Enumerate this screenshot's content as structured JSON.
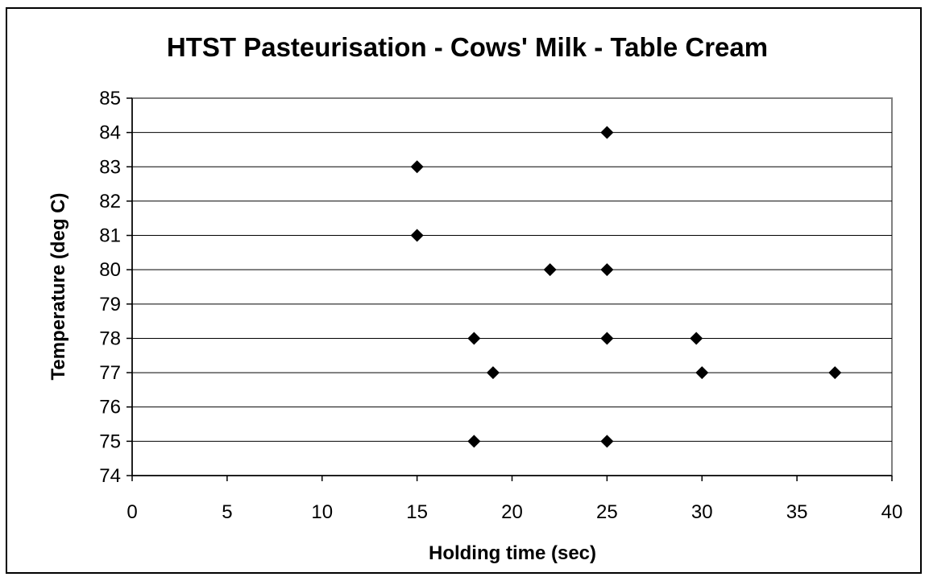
{
  "chart_data": {
    "type": "scatter",
    "title": "HTST Pasteurisation - Cows' Milk - Table Cream",
    "xlabel": "Holding time (sec)",
    "ylabel": "Temperature (deg C)",
    "xlim": [
      0,
      40
    ],
    "ylim": [
      74,
      85
    ],
    "x_ticks": [
      "0",
      "5",
      "10",
      "15",
      "20",
      "25",
      "30",
      "35",
      "40"
    ],
    "y_ticks": [
      "74",
      "75",
      "76",
      "77",
      "78",
      "79",
      "80",
      "81",
      "82",
      "83",
      "84",
      "85"
    ],
    "grid": "horizontal",
    "legend": "none",
    "marker": "diamond",
    "marker_color": "#000000",
    "points": [
      {
        "x": 25,
        "y": 84
      },
      {
        "x": 15,
        "y": 83
      },
      {
        "x": 15,
        "y": 81
      },
      {
        "x": 22,
        "y": 80
      },
      {
        "x": 25,
        "y": 80
      },
      {
        "x": 18,
        "y": 78
      },
      {
        "x": 25,
        "y": 78
      },
      {
        "x": 29.7,
        "y": 78
      },
      {
        "x": 19,
        "y": 77
      },
      {
        "x": 30,
        "y": 77
      },
      {
        "x": 37,
        "y": 77
      },
      {
        "x": 18,
        "y": 75
      },
      {
        "x": 25,
        "y": 75
      }
    ]
  }
}
